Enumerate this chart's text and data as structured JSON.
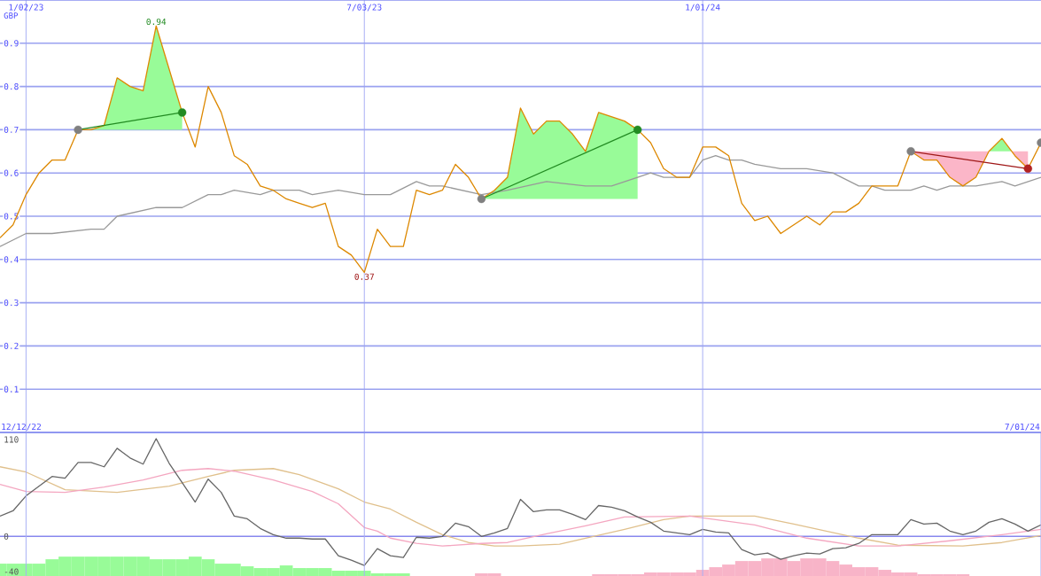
{
  "chart_data": [
    {
      "type": "line",
      "ylabel": "GBP",
      "xlim": [
        "2022-12-19",
        "2024-07-01"
      ],
      "ylim": [
        0,
        1.0
      ],
      "x": [
        "2022-12-19",
        "2022-12-26",
        "2023-01-02",
        "2023-01-09",
        "2023-01-16",
        "2023-01-23",
        "2023-01-30",
        "2023-02-06",
        "2023-02-13",
        "2023-02-20",
        "2023-02-27",
        "2023-03-06",
        "2023-03-13",
        "2023-03-20",
        "2023-03-27",
        "2023-04-03",
        "2023-04-10",
        "2023-04-17",
        "2023-04-24",
        "2023-05-01",
        "2023-05-08",
        "2023-05-15",
        "2023-05-22",
        "2023-05-29",
        "2023-06-05",
        "2023-06-12",
        "2023-06-19",
        "2023-06-26",
        "2023-07-03",
        "2023-07-10",
        "2023-07-17",
        "2023-07-24",
        "2023-07-31",
        "2023-08-07",
        "2023-08-14",
        "2023-08-21",
        "2023-08-28",
        "2023-09-04",
        "2023-09-11",
        "2023-09-18",
        "2023-09-25",
        "2023-10-02",
        "2023-10-09",
        "2023-10-16",
        "2023-10-23",
        "2023-10-30",
        "2023-11-06",
        "2023-11-13",
        "2023-11-20",
        "2023-11-27",
        "2023-12-04",
        "2023-12-11",
        "2023-12-18",
        "2023-12-25",
        "2024-01-01",
        "2024-01-08",
        "2024-01-15",
        "2024-01-22",
        "2024-01-29",
        "2024-02-05",
        "2024-02-12",
        "2024-02-19",
        "2024-02-26",
        "2024-03-04",
        "2024-03-11",
        "2024-03-18",
        "2024-03-25",
        "2024-04-01",
        "2024-04-08",
        "2024-04-15",
        "2024-04-22",
        "2024-04-29",
        "2024-05-06",
        "2024-05-13",
        "2024-05-20",
        "2024-05-27",
        "2024-06-03",
        "2024-06-10",
        "2024-06-17",
        "2024-06-24",
        "2024-07-01"
      ],
      "xticks": [
        {
          "value": "2023-01-02",
          "label": "1/02/23"
        },
        {
          "value": "2023-07-03",
          "label": "7/03/23"
        },
        {
          "value": "2024-01-01",
          "label": "1/01/24"
        }
      ],
      "yticks": [
        0.1,
        0.2,
        0.3,
        0.4,
        0.5,
        0.6,
        0.7,
        0.8,
        0.9
      ],
      "grid": true,
      "series": [
        {
          "type": "line",
          "color": "#999999",
          "x": [
            "2022-12-19",
            "2023-01-02",
            "2023-01-16",
            "2023-02-06",
            "2023-02-13",
            "2023-02-20",
            "2023-03-13",
            "2023-03-27",
            "2023-04-10",
            "2023-04-17",
            "2023-04-24",
            "2023-05-08",
            "2023-05-15",
            "2023-05-29",
            "2023-06-05",
            "2023-06-19",
            "2023-07-03",
            "2023-07-17",
            "2023-07-31",
            "2023-08-07",
            "2023-08-14",
            "2023-09-04",
            "2023-09-18",
            "2023-10-09",
            "2023-10-30",
            "2023-11-13",
            "2023-11-27",
            "2023-12-04",
            "2023-12-11",
            "2023-12-25",
            "2024-01-01",
            "2024-01-08",
            "2024-01-15",
            "2024-01-22",
            "2024-01-29",
            "2024-02-12",
            "2024-02-26",
            "2024-03-11",
            "2024-03-25",
            "2024-04-01",
            "2024-04-08",
            "2024-04-22",
            "2024-04-29",
            "2024-05-06",
            "2024-05-13",
            "2024-05-27",
            "2024-06-10",
            "2024-06-17",
            "2024-07-01"
          ],
          "values": [
            0.43,
            0.46,
            0.46,
            0.47,
            0.47,
            0.5,
            0.52,
            0.52,
            0.55,
            0.55,
            0.56,
            0.55,
            0.56,
            0.56,
            0.55,
            0.56,
            0.55,
            0.55,
            0.58,
            0.57,
            0.57,
            0.55,
            0.56,
            0.58,
            0.57,
            0.57,
            0.59,
            0.6,
            0.59,
            0.59,
            0.63,
            0.64,
            0.63,
            0.63,
            0.62,
            0.61,
            0.61,
            0.6,
            0.57,
            0.57,
            0.56,
            0.56,
            0.57,
            0.56,
            0.57,
            0.57,
            0.58,
            0.57,
            0.59
          ]
        },
        {
          "color": "#dd8800",
          "values": [
            0.45,
            0.48,
            0.55,
            0.6,
            0.63,
            0.63,
            0.7,
            0.7,
            0.71,
            0.82,
            0.8,
            0.79,
            0.94,
            0.84,
            0.74,
            0.66,
            0.8,
            0.74,
            0.64,
            0.62,
            0.57,
            0.56,
            0.54,
            0.53,
            0.52,
            0.53,
            0.43,
            0.41,
            0.37,
            0.47,
            0.43,
            0.43,
            0.56,
            0.55,
            0.56,
            0.62,
            0.59,
            0.54,
            0.56,
            0.59,
            0.75,
            0.69,
            0.72,
            0.72,
            0.69,
            0.65,
            0.74,
            0.73,
            0.72,
            0.7,
            0.67,
            0.61,
            0.59,
            0.59,
            0.66,
            0.66,
            0.64,
            0.53,
            0.49,
            0.5,
            0.46,
            0.48,
            0.5,
            0.48,
            0.51,
            0.51,
            0.53,
            0.57,
            0.57,
            0.57,
            0.65,
            0.63,
            0.63,
            0.59,
            0.57,
            0.59,
            0.65,
            0.68,
            0.64,
            0.61,
            0.67
          ]
        },
        {
          "type": "line",
          "color": "#228b22",
          "x": [
            "2023-01-30",
            "2023-03-27"
          ],
          "values": [
            0.7,
            0.74
          ]
        },
        {
          "type": "line",
          "color": "#228b22",
          "x": [
            "2023-09-04",
            "2023-11-27"
          ],
          "values": [
            0.54,
            0.7
          ]
        },
        {
          "type": "line",
          "color": "#a01818",
          "x": [
            "2024-04-22",
            "2024-06-24"
          ],
          "values": [
            0.65,
            0.61
          ]
        },
        {
          "type": "scatter",
          "color": "#808080",
          "marker": "circle",
          "x": [
            "2023-01-30",
            "2023-09-04",
            "2024-04-22",
            "2024-07-01"
          ],
          "values": [
            0.7,
            0.54,
            0.65,
            0.67
          ]
        },
        {
          "type": "scatter",
          "color": "#228b22",
          "marker": "circle",
          "x": [
            "2023-03-27",
            "2023-11-27"
          ],
          "values": [
            0.74,
            0.7
          ]
        },
        {
          "type": "scatter",
          "color": "#b22222",
          "marker": "circle",
          "x": [
            "2024-06-24"
          ],
          "values": [
            0.61
          ]
        }
      ],
      "annotations": [
        {
          "text": "0.94",
          "x": "2023-03-13",
          "y": 0.94
        },
        {
          "text": "0.37",
          "x": "2023-07-03",
          "y": 0.37
        }
      ]
    },
    {
      "type": "line",
      "xlim": [
        "2022-12-19",
        "2024-07-01"
      ],
      "ylim": [
        -45,
        118
      ],
      "x": [
        "2022-12-19",
        "2022-12-26",
        "2023-01-02",
        "2023-01-09",
        "2023-01-16",
        "2023-01-23",
        "2023-01-30",
        "2023-02-06",
        "2023-02-13",
        "2023-02-20",
        "2023-02-27",
        "2023-03-06",
        "2023-03-13",
        "2023-03-20",
        "2023-03-27",
        "2023-04-03",
        "2023-04-10",
        "2023-04-17",
        "2023-04-24",
        "2023-05-01",
        "2023-05-08",
        "2023-05-15",
        "2023-05-22",
        "2023-05-29",
        "2023-06-05",
        "2023-06-12",
        "2023-06-19",
        "2023-06-26",
        "2023-07-03",
        "2023-07-10",
        "2023-07-17",
        "2023-07-24",
        "2023-07-31",
        "2023-08-07",
        "2023-08-14",
        "2023-08-21",
        "2023-08-28",
        "2023-09-04",
        "2023-09-11",
        "2023-09-18",
        "2023-09-25",
        "2023-10-02",
        "2023-10-09",
        "2023-10-16",
        "2023-10-23",
        "2023-10-30",
        "2023-11-06",
        "2023-11-13",
        "2023-11-20",
        "2023-11-27",
        "2023-12-04",
        "2023-12-11",
        "2023-12-18",
        "2023-12-25",
        "2024-01-01",
        "2024-01-08",
        "2024-01-15",
        "2024-01-22",
        "2024-01-29",
        "2024-02-05",
        "2024-02-12",
        "2024-02-19",
        "2024-02-26",
        "2024-03-04",
        "2024-03-11",
        "2024-03-18",
        "2024-03-25",
        "2024-04-01",
        "2024-04-08",
        "2024-04-15",
        "2024-04-22",
        "2024-04-29",
        "2024-05-06",
        "2024-05-13",
        "2024-05-20",
        "2024-05-27",
        "2024-06-03",
        "2024-06-10",
        "2024-06-17",
        "2024-06-24",
        "2024-07-01"
      ],
      "xticks": [
        {
          "value": "2023-01-02",
          "label": null
        },
        {
          "value": "2023-07-03",
          "label": null
        },
        {
          "value": "2024-01-01",
          "label": null
        },
        {
          "value": "2024-07-01",
          "label": null
        }
      ],
      "tick_labels": "y",
      "yticks": [
        110,
        0,
        -40
      ],
      "grid": "x",
      "ref_lines": [
        {
          "axis": "y",
          "value": 0,
          "color": "#8888ee"
        }
      ],
      "series": [
        {
          "type": "bar",
          "color": "#98fb98",
          "x": [
            "2022-12-19",
            "2022-12-26",
            "2023-01-02",
            "2023-01-09",
            "2023-01-16",
            "2023-01-23",
            "2023-01-30",
            "2023-02-06",
            "2023-02-13",
            "2023-02-20",
            "2023-02-27",
            "2023-03-06",
            "2023-03-13",
            "2023-03-20",
            "2023-03-27",
            "2023-04-03",
            "2023-04-10",
            "2023-04-17",
            "2023-04-24",
            "2023-05-01",
            "2023-05-08",
            "2023-05-15",
            "2023-05-22",
            "2023-05-29",
            "2023-06-05",
            "2023-06-12",
            "2023-06-19",
            "2023-06-26",
            "2023-07-03",
            "2023-07-10",
            "2023-07-17",
            "2023-07-24"
          ],
          "values": [
            14,
            14,
            14,
            14,
            19,
            22,
            22,
            22,
            22,
            22,
            22,
            22,
            19,
            19,
            19,
            22,
            19,
            14,
            14,
            11,
            9,
            9,
            12,
            9,
            9,
            9,
            6,
            6,
            6,
            3,
            3,
            3
          ],
          "base": [
            -45,
            -45,
            -45,
            -45,
            -45,
            -45,
            -45,
            -45,
            -45,
            -45,
            -45,
            -45,
            -45,
            -45,
            -45,
            -45,
            -45,
            -45,
            -45,
            -45,
            -45,
            -45,
            -45,
            -45,
            -45,
            -45,
            -45,
            -45,
            -45,
            -45,
            -45,
            -45
          ]
        },
        {
          "type": "bar",
          "color": "#f8b4c8",
          "x": [
            "2023-09-04",
            "2023-09-11",
            "2023-11-06",
            "2023-11-13",
            "2023-11-20",
            "2023-11-27",
            "2023-12-04",
            "2023-12-11",
            "2023-12-18",
            "2023-12-25",
            "2024-01-01",
            "2024-01-08",
            "2024-01-15",
            "2024-01-22",
            "2024-01-29",
            "2024-02-05",
            "2024-02-12",
            "2024-02-19",
            "2024-02-26",
            "2024-03-04",
            "2024-03-11",
            "2024-03-18",
            "2024-03-25",
            "2024-04-01",
            "2024-04-08",
            "2024-04-15",
            "2024-04-22",
            "2024-04-29",
            "2024-05-06",
            "2024-05-13",
            "2024-05-20"
          ],
          "values": [
            3,
            3,
            2,
            2,
            2,
            2,
            4,
            4,
            4,
            4,
            7,
            10,
            13,
            17,
            17,
            20,
            20,
            17,
            20,
            20,
            17,
            13,
            10,
            10,
            7,
            4,
            4,
            2,
            2,
            2,
            2
          ],
          "base": [
            -45,
            -45,
            -45,
            -45,
            -45,
            -45,
            -45,
            -45,
            -45,
            -45,
            -45,
            -45,
            -45,
            -45,
            -45,
            -45,
            -45,
            -45,
            -45,
            -45,
            -45,
            -45,
            -45,
            -45,
            -45,
            -45,
            -45,
            -45,
            -45,
            -45,
            -45
          ]
        },
        {
          "type": "line",
          "color": "#e0c08c",
          "x": [
            "2022-12-19",
            "2023-01-02",
            "2023-01-23",
            "2023-02-20",
            "2023-03-20",
            "2023-04-10",
            "2023-04-24",
            "2023-05-15",
            "2023-05-29",
            "2023-06-19",
            "2023-07-03",
            "2023-07-17",
            "2023-07-31",
            "2023-08-14",
            "2023-08-28",
            "2023-09-11",
            "2023-09-25",
            "2023-10-16",
            "2023-10-30",
            "2023-11-20",
            "2023-12-11",
            "2023-12-25",
            "2024-01-29",
            "2024-02-19",
            "2024-03-25",
            "2024-04-15",
            "2024-05-20",
            "2024-06-10",
            "2024-07-01"
          ],
          "values": [
            79,
            73,
            53,
            50,
            57,
            68,
            75,
            77,
            70,
            54,
            39,
            31,
            16,
            2,
            -7,
            -11,
            -11,
            -9,
            -2,
            8,
            19,
            23,
            23,
            14,
            -2,
            -10,
            -11,
            -7,
            1
          ]
        },
        {
          "type": "line",
          "color": "#f4a6c0",
          "x": [
            "2022-12-19",
            "2023-01-02",
            "2023-01-23",
            "2023-02-13",
            "2023-03-06",
            "2023-03-27",
            "2023-04-10",
            "2023-04-24",
            "2023-05-15",
            "2023-06-05",
            "2023-06-19",
            "2023-07-03",
            "2023-07-10",
            "2023-07-17",
            "2023-07-31",
            "2023-08-14",
            "2023-09-04",
            "2023-09-18",
            "2023-10-09",
            "2023-10-30",
            "2023-11-20",
            "2023-12-25",
            "2024-01-29",
            "2024-02-26",
            "2024-03-25",
            "2024-04-15",
            "2024-05-13",
            "2024-06-10",
            "2024-07-01"
          ],
          "values": [
            59,
            51,
            50,
            56,
            64,
            75,
            77,
            74,
            64,
            51,
            37,
            10,
            6,
            -2,
            -8,
            -11,
            -8,
            -7,
            3,
            12,
            22,
            23,
            13,
            -2,
            -11,
            -11,
            -5,
            2,
            8
          ]
        },
        {
          "color": "#666666",
          "values": [
            23,
            29,
            46,
            57,
            68,
            66,
            84,
            84,
            79,
            100,
            89,
            82,
            111,
            83,
            61,
            39,
            65,
            50,
            23,
            20,
            9,
            2,
            -2,
            -2,
            -3,
            -3,
            -22,
            -27,
            -33,
            -14,
            -22,
            -24,
            -1,
            -2,
            0,
            15,
            11,
            0,
            4,
            9,
            42,
            28,
            30,
            30,
            25,
            19,
            35,
            33,
            29,
            22,
            16,
            6,
            4,
            2,
            8,
            5,
            4,
            -15,
            -21,
            -19,
            -26,
            -22,
            -19,
            -20,
            -14,
            -13,
            -8,
            2,
            2,
            2,
            19,
            14,
            15,
            6,
            2,
            6,
            16,
            20,
            14,
            6,
            13
          ]
        }
      ],
      "annotations": [
        "12/12/22",
        "7/01/24"
      ]
    }
  ]
}
